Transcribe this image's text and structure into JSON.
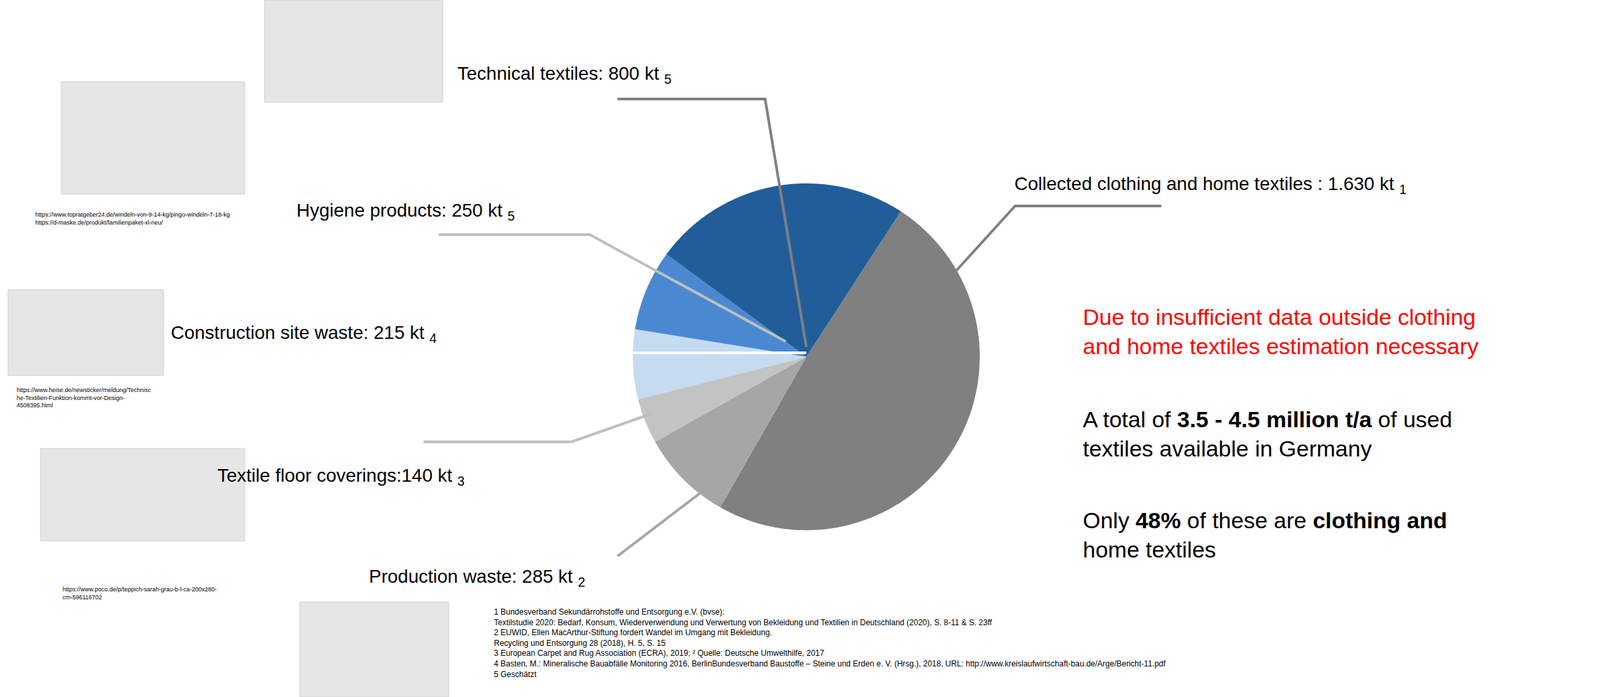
{
  "chart_data": {
    "type": "pie",
    "categories": [
      "Collected clothing and home textiles",
      "Production waste",
      "Textile floor coverings",
      "Construction site waste",
      "Hygiene products",
      "Technical textiles"
    ],
    "values": [
      1630,
      285,
      140,
      215,
      250,
      800
    ],
    "value_labels": [
      "Collected clothing and home textiles : 1.630 kt",
      "Production waste: 285 kt",
      "Textile floor coverings:140 kt",
      "Construction site waste: 215 kt",
      "Hygiene products: 250 kt",
      "Technical textiles: 800 kt"
    ],
    "refs": [
      "1",
      "2",
      "3",
      "4",
      "5",
      "5"
    ],
    "colors": [
      "#808080",
      "#a6a6a6",
      "#c3c3c3",
      "#c5dbf0",
      "#4a89d2",
      "#215d99"
    ],
    "data_labels": true
  },
  "notes": [
    {
      "color": "#ff0000",
      "lines": [
        [
          "Due to insufficient data outside clothing"
        ],
        [
          "and home textiles estimation necessary"
        ]
      ]
    },
    {
      "color": "#000000",
      "lines": [
        [
          "A total of ",
          "3.5 - 4.5 million t/a",
          " of used"
        ],
        [
          "textiles available in Germany"
        ]
      ]
    },
    {
      "color": "#000000",
      "lines": [
        [
          "Only ",
          "48%",
          " of these are ",
          "clothing and"
        ],
        [
          "home textiles"
        ]
      ]
    }
  ],
  "footnotes": [
    "1 Bundesverband Sekundärrohstoffe und Entsorgung e.V. (bvse):",
    "Textilstudie 2020: Bedarf, Konsum, Wiederverwendung und Verwertung von Bekleidung und Textilien in Deutschland (2020), S. 8-11 & S. 23ff",
    "2 EUWID, Ellen MacArthur-Stiftung fordert Wandel im Umgang mit Bekleidung.",
    "Recycling und Entsorgung 28 (2018), H. 5, S. 15",
    "3 European Carpet and Rug Association (ECRA), 2019; ² Quelle: Deutsche Umwelthilfe, 2017",
    "4 Basten, M.: Mineralische Bauabfälle Monitoring 2016, BerlinBundesverband Baustoffe – Steine und Erden e. V. (Hrsg.), 2018, URL: http://www.kreislaufwirtschaft-bau.de/Arge/Bericht-11.pdf",
    "5 Geschätzt"
  ],
  "image_credits": [
    [
      "https://www.topratgeber24.de/windeln-von-9-14-kg/pingo-windeln-7-18-kg",
      "https://d-maske.de/produkt/familienpaket-xl-neu/"
    ],
    [
      "https://www.heise.de/newsticker/meldung/Technisc",
      "he-Textilien-Funktion-kommt-vor-Design-",
      "4508395.html"
    ],
    [
      "https://www.poco.de/p/teppich-sarah-grau-b-l-ca-200x280-",
      "cm-596116702"
    ]
  ]
}
